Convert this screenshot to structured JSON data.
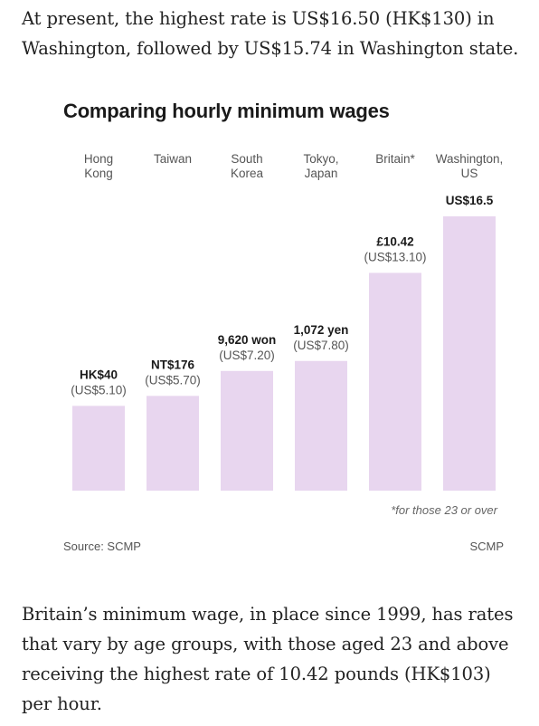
{
  "article": {
    "para_top": "At present, the highest rate is US$16.50 (HK$130) in Washington, followed by US$15.74 in Washington state.",
    "para_bottom": "Britain’s minimum wage, in place since 1999, has rates that vary by age groups, with those aged 23 and above receiving the highest rate of 10.42 pounds (HK$103) per hour."
  },
  "chart_data": {
    "type": "bar",
    "title": "Comparing hourly minimum wages",
    "categories": [
      [
        "Hong",
        "Kong"
      ],
      [
        "Taiwan"
      ],
      [
        "South",
        "Korea"
      ],
      [
        "Tokyo,",
        "Japan"
      ],
      [
        "Britain*"
      ],
      [
        "Washington,",
        "US"
      ]
    ],
    "series": [
      {
        "values": [
          5.1,
          5.7,
          7.2,
          7.8,
          13.1,
          16.5
        ]
      }
    ],
    "local_labels": [
      "HK$40",
      "NT$176",
      "9,620 won",
      "1,072 yen",
      "£10.42",
      "US$16.5"
    ],
    "usd_labels": [
      "(US$5.10)",
      "(US$5.70)",
      "(US$7.20)",
      "(US$7.80)",
      "(US$13.10)",
      ""
    ],
    "ylim": [
      0,
      16.5
    ],
    "grid": false,
    "bar_color": "#e8d6ef",
    "footnote": "*for those 23 or over",
    "source": "Source: SCMP",
    "credit": "SCMP"
  }
}
